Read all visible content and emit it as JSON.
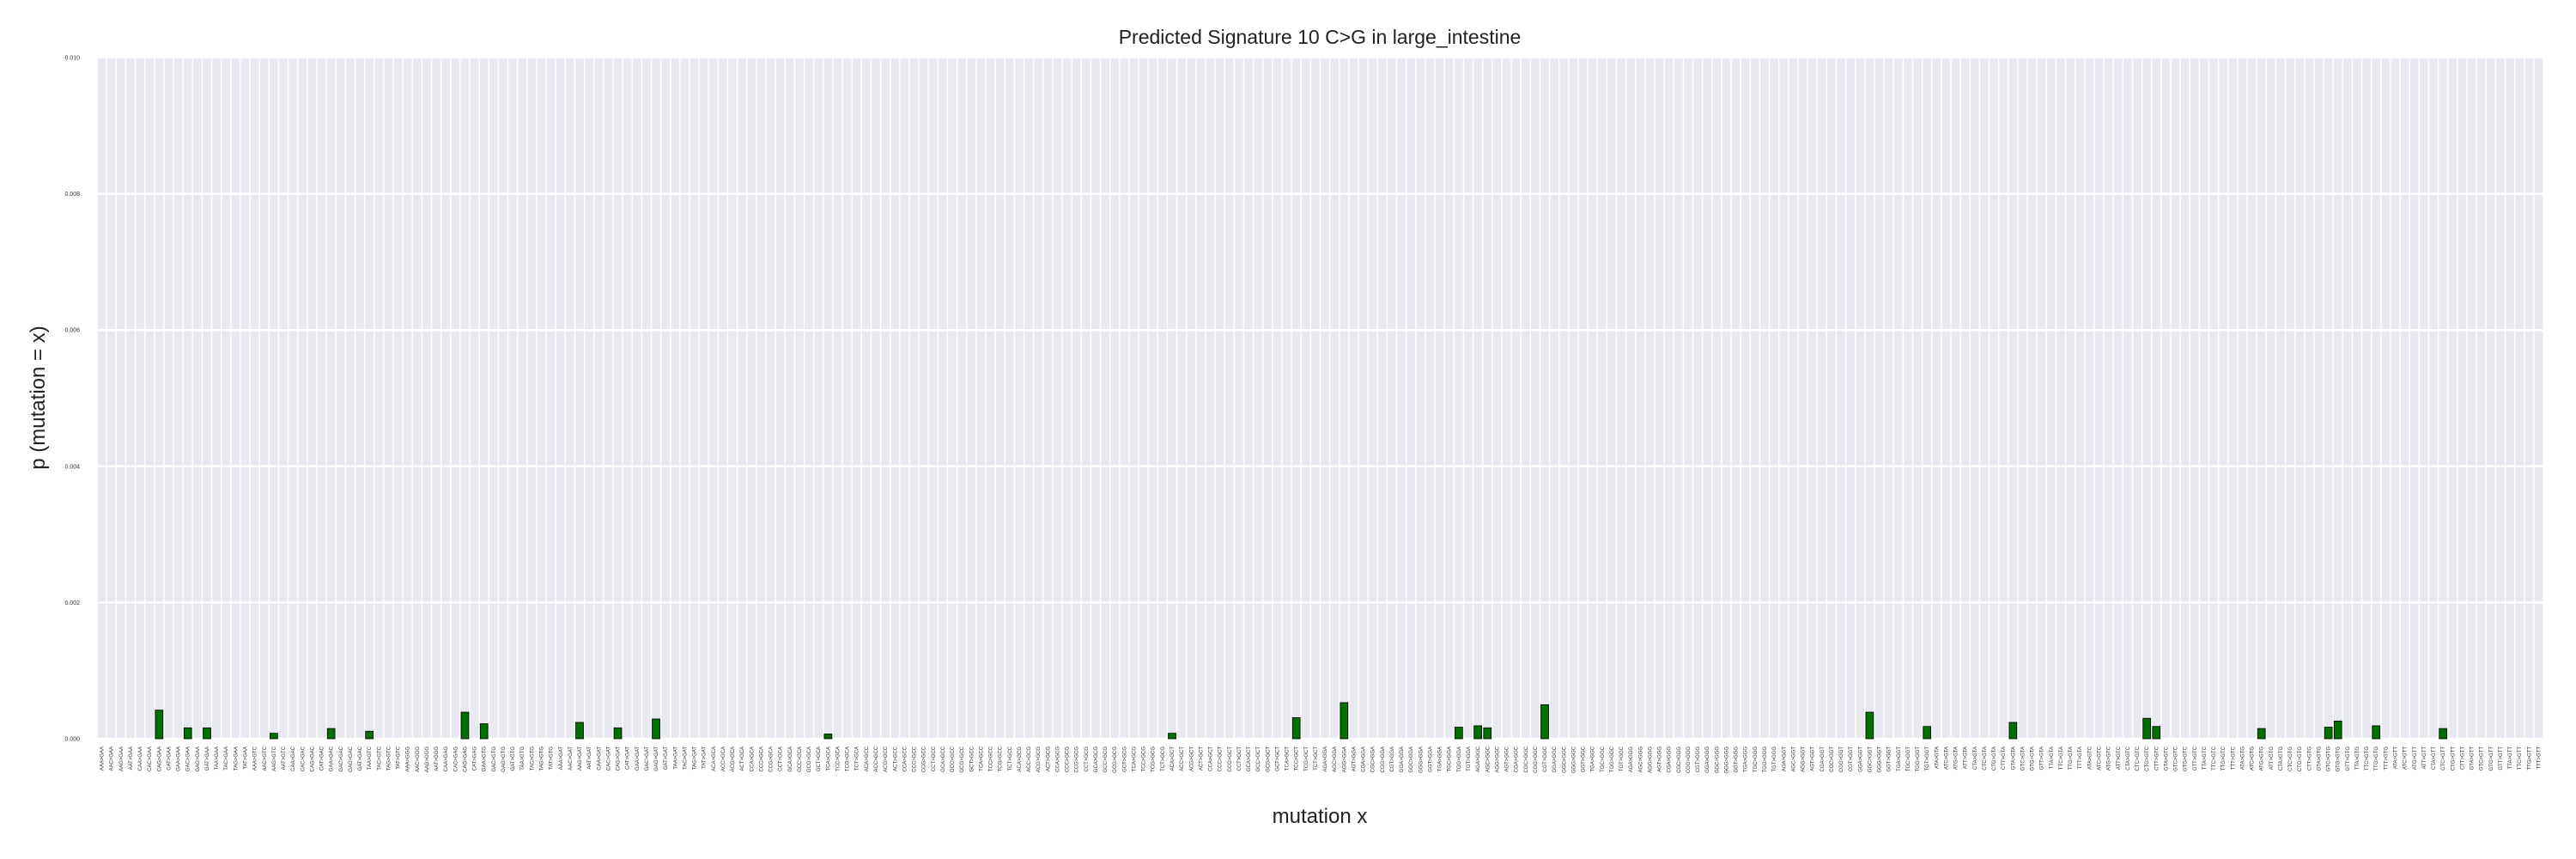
{
  "chart_data": {
    "type": "bar",
    "title": "Predicted Signature 10 C>G in large_intestine",
    "xlabel": "mutation x",
    "ylabel": "p (mutation = x)",
    "ylim": [
      0,
      0.01
    ],
    "yticks": [
      "0.000",
      "0.002",
      "0.004",
      "0.006",
      "0.008",
      "0.010"
    ],
    "grid": true,
    "bar_color": "#007000",
    "background_color": "#e8e8f0",
    "n_categories": 256,
    "categories": [
      "AAA>GAA",
      "AAC>GAA",
      "AAG>GAA",
      "AAT>GAA",
      "CAA>GAA",
      "CAC>GAA",
      "CAG>GAA",
      "CAT>GAA",
      "GAA>GAA",
      "GAC>GAA",
      "GAG>GAA",
      "GAT>GAA",
      "TAA>GAA",
      "TAC>GAA",
      "TAG>GAA",
      "TAT>GAA",
      "AAA>GTC",
      "AAC>GTC",
      "AAG>GTC",
      "AAT>GTC",
      "CAA>GAC",
      "CAC>GAC",
      "CAG>GAC",
      "CAT>GAC",
      "GAA>GAC",
      "GAC>GAC",
      "GAG>GAC",
      "GAT>GAC",
      "TAA>GTC",
      "TAC>GTC",
      "TAG>GTC",
      "TAT>GTC",
      "AAA>GGG",
      "AAC>GGG",
      "AAG>GGG",
      "AAT>GGG",
      "CAA>GAG",
      "CAC>GAG",
      "CAG>GAG",
      "CAT>GAG",
      "GAA>GTG",
      "GAC>GTG",
      "GAG>GTG",
      "GAT>GTG",
      "TAA>GTG",
      "TAC>GTG",
      "TAG>GTG",
      "TAT>GTG",
      "AAA>GAT",
      "AAC>GAT",
      "AAG>GAT",
      "AAT>GAT",
      "CAA>GAT",
      "CAC>GAT",
      "CAG>GAT",
      "CAT>GAT",
      "GAA>GAT",
      "GAC>GAT",
      "GAG>GAT",
      "GAT>GAT",
      "TAA>GAT",
      "TAC>GAT",
      "TAG>GAT",
      "TAT>GAT",
      "ACA>GCA",
      "ACC>GCA",
      "ACG>GCA",
      "ACT>GCA",
      "CCA>GCA",
      "CCC>GCA",
      "CCG>GCA",
      "CCT>GCA",
      "GCA>GCA",
      "GCC>GCA",
      "GCG>GCA",
      "GCT>GCA",
      "TCA>GCA",
      "TCC>GCA",
      "TCG>GCA",
      "TCT>GCA",
      "ACA>GCC",
      "ACC>GCC",
      "ACG>GCC",
      "ACT>GCC",
      "CCA>GCC",
      "CCC>GCC",
      "CCG>GCC",
      "CCT>GCC",
      "GCA>GCC",
      "GCC>GCC",
      "GCG>GCC",
      "GCT>GCC",
      "TCA>GCC",
      "TCC>GCC",
      "TCG>GCC",
      "TCT>GCC",
      "ACA>GCG",
      "ACC>GCG",
      "ACG>GCG",
      "ACT>GCG",
      "CCA>GCG",
      "CCC>GCG",
      "CCG>GCG",
      "CCT>GCG",
      "GCA>GCG",
      "GCC>GCG",
      "GCG>GCG",
      "GCT>GCG",
      "TCA>GCG",
      "TCC>GCG",
      "TCG>GCG",
      "TCT>GCG",
      "ACA>GCT",
      "ACC>GCT",
      "ACG>GCT",
      "ACT>GCT",
      "CCA>GCT",
      "CCC>GCT",
      "CCG>GCT",
      "CCT>GCT",
      "GCA>GCT",
      "GCC>GCT",
      "GCG>GCT",
      "GCT>GCT",
      "TCA>GCT",
      "TCC>GCT",
      "TCG>GCT",
      "TCT>GCT",
      "AGA>GGA",
      "AGC>GGA",
      "AGG>GGA",
      "AGT>GGA",
      "CGA>GGA",
      "CGC>GGA",
      "CGG>GGA",
      "CGT>GGA",
      "GGA>GGA",
      "GGC>GGA",
      "GGG>GGA",
      "GGT>GGA",
      "TGA>GGA",
      "TGC>GGA",
      "TGG>GGA",
      "TGT>GGA",
      "AGA>GGC",
      "AGC>GGC",
      "AGG>GGC",
      "AGT>GGC",
      "CGA>GGC",
      "CGC>GGC",
      "CGG>GGC",
      "CGT>GGC",
      "GGA>GGC",
      "GGC>GGC",
      "GGG>GGC",
      "GGT>GGC",
      "TGA>GGC",
      "TGC>GGC",
      "TGG>GGC",
      "TGT>GGC",
      "AGA>GGG",
      "AGC>GGG",
      "AGG>GGG",
      "AGT>GGG",
      "CGA>GGG",
      "CGC>GGG",
      "CGG>GGG",
      "CGT>GGG",
      "GGA>GGG",
      "GGC>GGG",
      "GGG>GGG",
      "GGT>GGG",
      "TGA>GGG",
      "TGC>GGG",
      "TGG>GGG",
      "TGT>GGG",
      "AGA>GGT",
      "AGC>GGT",
      "AGG>GGT",
      "AGT>GGT",
      "CGA>GGT",
      "CGC>GGT",
      "CGG>GGT",
      "CGT>GGT",
      "GGA>GGT",
      "GGC>GGT",
      "GGG>GGT",
      "GGT>GGT",
      "TGA>GGT",
      "TGC>GGT",
      "TGG>GGT",
      "TGT>GGT",
      "ATA>GTA",
      "ATC>GTA",
      "ATG>GTA",
      "ATT>GTA",
      "CTA>GTA",
      "CTC>GTA",
      "CTG>GTA",
      "CTT>GTA",
      "GTA>GTA",
      "GTC>GTA",
      "GTG>GTA",
      "GTT>GTA",
      "TTA>GTA",
      "TTC>GTA",
      "TTG>GTA",
      "TTT>GTA",
      "ATA>GTC",
      "ATC>GTC",
      "ATG>GTC",
      "ATT>GTC",
      "CTA>GTC",
      "CTC>GTC",
      "CTG>GTC",
      "CTT>GTC",
      "GTA>GTC",
      "GTC>GTC",
      "GTG>GTC",
      "GTT>GTC",
      "TTA>GTC",
      "TTC>GTC",
      "TTG>GTC",
      "TTT>GTC",
      "ATA>GTG",
      "ATC>GTG",
      "ATG>GTG",
      "ATT>GTG",
      "CTA>GTG",
      "CTC>GTG",
      "CTG>GTG",
      "CTT>GTG",
      "GTA>GTG",
      "GTC>GTG",
      "GTG>GTG",
      "GTT>GTG",
      "TTA>GTG",
      "TTC>GTG",
      "TTG>GTG",
      "TTT>GTG",
      "ATA>GTT",
      "ATC>GTT",
      "ATG>GTT",
      "ATT>GTT",
      "CTA>GTT",
      "CTC>GTT",
      "CTG>GTT",
      "CTT>GTT",
      "GTA>GTT",
      "GTC>GTT",
      "GTG>GTT",
      "GTT>GTT",
      "TTA>GTT",
      "TTC>GTT",
      "TTG>GTT",
      "TTT>GTT"
    ],
    "nonzero_values": [
      {
        "index": 6,
        "value": 0.00042
      },
      {
        "index": 9,
        "value": 0.00016
      },
      {
        "index": 11,
        "value": 0.00016
      },
      {
        "index": 18,
        "value": 8e-05
      },
      {
        "index": 24,
        "value": 0.00015
      },
      {
        "index": 28,
        "value": 0.00011
      },
      {
        "index": 38,
        "value": 0.00039
      },
      {
        "index": 40,
        "value": 0.00022
      },
      {
        "index": 50,
        "value": 0.00024
      },
      {
        "index": 54,
        "value": 0.00016
      },
      {
        "index": 58,
        "value": 0.00029
      },
      {
        "index": 76,
        "value": 7e-05
      },
      {
        "index": 112,
        "value": 8e-05
      },
      {
        "index": 125,
        "value": 0.00031
      },
      {
        "index": 130,
        "value": 0.00053
      },
      {
        "index": 142,
        "value": 0.00017
      },
      {
        "index": 144,
        "value": 0.00019
      },
      {
        "index": 145,
        "value": 0.00016
      },
      {
        "index": 151,
        "value": 0.0005
      },
      {
        "index": 185,
        "value": 0.00039
      },
      {
        "index": 191,
        "value": 0.00018
      },
      {
        "index": 200,
        "value": 0.00024
      },
      {
        "index": 214,
        "value": 0.0003
      },
      {
        "index": 215,
        "value": 0.00018
      },
      {
        "index": 226,
        "value": 0.00015
      },
      {
        "index": 233,
        "value": 0.00017
      },
      {
        "index": 234,
        "value": 0.00026
      },
      {
        "index": 238,
        "value": 0.00019
      },
      {
        "index": 245,
        "value": 0.00015
      }
    ]
  }
}
